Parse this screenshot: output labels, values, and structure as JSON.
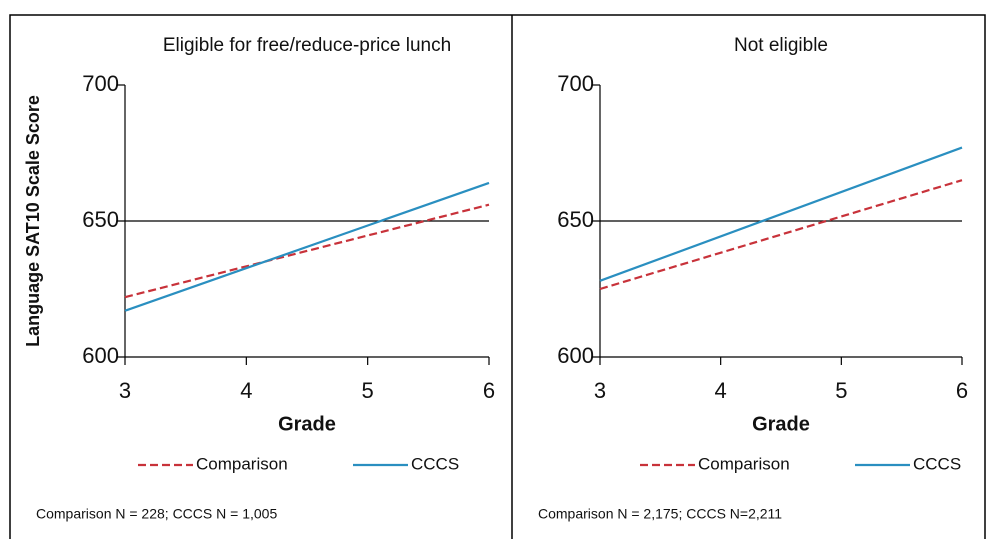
{
  "chart_data": [
    {
      "type": "line",
      "title": "Eligible for free/reduce-price lunch",
      "x_label": "Grade",
      "y_label": "Language SAT10 Scale Score",
      "x": [
        3,
        6
      ],
      "xlim": [
        3,
        6
      ],
      "xticks": [
        3,
        4,
        5,
        6
      ],
      "ylim": [
        600,
        700
      ],
      "yticks": [
        600,
        650,
        700
      ],
      "series": [
        {
          "name": "Comparison",
          "color": "#c8323a",
          "dash": true,
          "values": [
            622,
            656
          ]
        },
        {
          "name": "CCCS",
          "color": "#2a8fc0",
          "dash": false,
          "values": [
            617,
            664
          ]
        }
      ],
      "note": "Comparison N = 228; CCCS N = 1,005"
    },
    {
      "type": "line",
      "title": "Not eligible",
      "x_label": "Grade",
      "x": [
        3,
        6
      ],
      "xlim": [
        3,
        6
      ],
      "xticks": [
        3,
        4,
        5,
        6
      ],
      "ylim": [
        600,
        700
      ],
      "yticks": [
        600,
        650,
        700
      ],
      "series": [
        {
          "name": "Comparison",
          "color": "#c8323a",
          "dash": true,
          "values": [
            625,
            665
          ]
        },
        {
          "name": "CCCS",
          "color": "#2a8fc0",
          "dash": false,
          "values": [
            628,
            677
          ]
        }
      ],
      "note": "Comparison N = 2,175; CCCS N=2,211"
    }
  ]
}
